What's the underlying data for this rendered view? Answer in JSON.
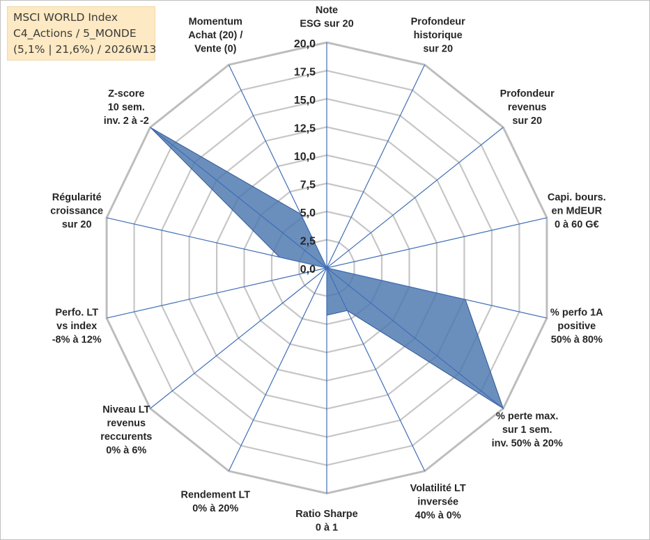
{
  "header": {
    "lines": [
      "MSCI WORLD Index",
      "C4_Actions / 5_MONDE",
      "(5,1% | 21,6%) / 2026W13"
    ]
  },
  "chart_data": {
    "type": "radar",
    "title": "",
    "rmin": 0,
    "rmax": 20,
    "tick_values": [
      0,
      2.5,
      5,
      7.5,
      10,
      12.5,
      15,
      17.5,
      20
    ],
    "tick_labels": [
      "0,0",
      "2,5",
      "5,0",
      "7,5",
      "10,0",
      "12,5",
      "15,0",
      "17,5",
      "20,0"
    ],
    "axes": [
      {
        "label": [
          "Note",
          "ESG sur 20"
        ],
        "value": 0
      },
      {
        "label": [
          "Profondeur",
          "historique",
          "sur 20"
        ],
        "value": 0
      },
      {
        "label": [
          "Profondeur",
          "revenus",
          "sur 20"
        ],
        "value": 0
      },
      {
        "label": [
          "Capi. bours.",
          "en MdEUR",
          "0 à 60 G€"
        ],
        "value": 0
      },
      {
        "label": [
          "% perfo 1A",
          "positive",
          "50% à 80%"
        ],
        "value": 12.6
      },
      {
        "label": [
          "% perte max.",
          "sur 1 sem.",
          "inv. 50% à 20%"
        ],
        "value": 20
      },
      {
        "label": [
          "Volatilité LT",
          "inversée",
          "40% à 0%"
        ],
        "value": 4.2
      },
      {
        "label": [
          "Ratio Sharpe",
          "0 à 1"
        ],
        "value": 4.2
      },
      {
        "label": [
          "Rendement LT",
          "0% à 20%"
        ],
        "value": 0
      },
      {
        "label": [
          "Niveau LT",
          "revenus",
          "reccurents",
          "0% à 6%"
        ],
        "value": 0
      },
      {
        "label": [
          "Perfo. LT",
          "vs index",
          "-8% à 12%"
        ],
        "value": 0
      },
      {
        "label": [
          "Régularité",
          "croissance",
          "sur 20"
        ],
        "value": 4.3
      },
      {
        "label": [
          "Z-score",
          "10 sem.",
          "inv. 2 à -2"
        ],
        "value": 20
      },
      {
        "label": [
          "Momentum",
          "Achat (20) /",
          "Vente (0)"
        ],
        "value": 5.3
      }
    ],
    "colors": {
      "fill": "#4a76ae",
      "stroke": "#2f5597",
      "spoke": "#3f6db5",
      "grid": "#c6c6c6",
      "grid_outer": "#bdbdbd"
    }
  }
}
